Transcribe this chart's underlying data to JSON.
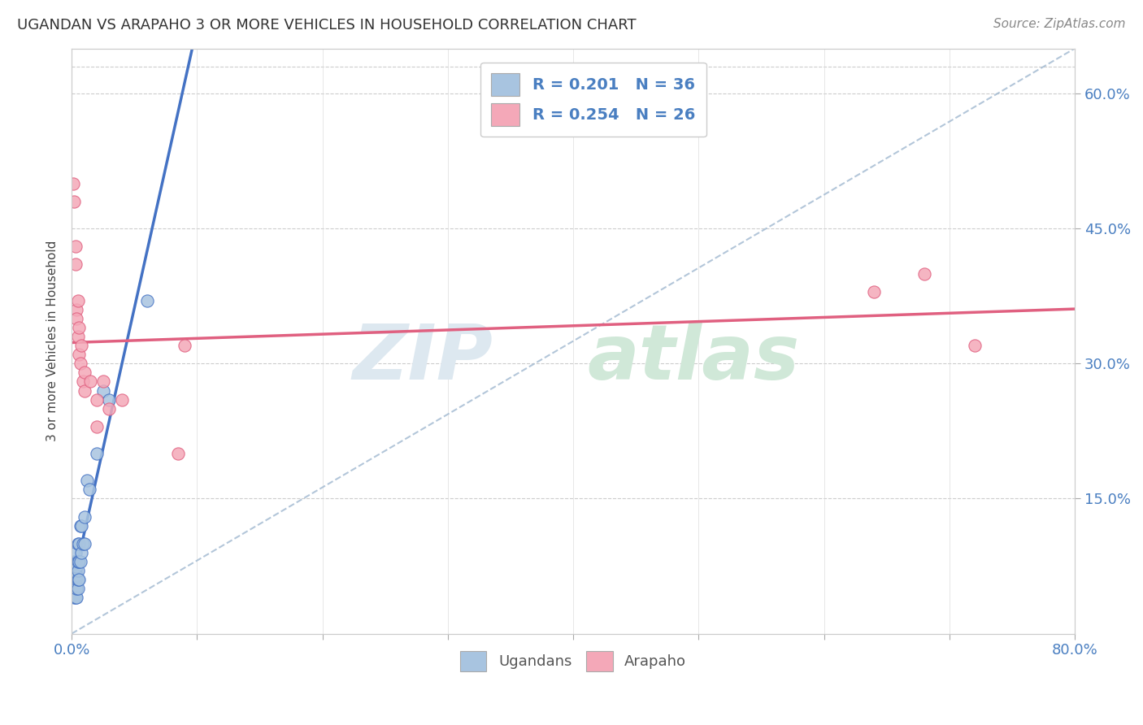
{
  "title": "UGANDAN VS ARAPAHO 3 OR MORE VEHICLES IN HOUSEHOLD CORRELATION CHART",
  "source": "Source: ZipAtlas.com",
  "ylabel": "3 or more Vehicles in Household",
  "xlabel": "",
  "xlim": [
    0.0,
    0.8
  ],
  "ylim": [
    0.0,
    0.65
  ],
  "ugandan_color": "#a8c4e0",
  "arapaho_color": "#f4a8b8",
  "ugandan_line_color": "#4472c4",
  "arapaho_line_color": "#e06080",
  "ref_line_color": "#a0b8d0",
  "background_color": "#ffffff",
  "ugandan_points_x": [
    0.002,
    0.002,
    0.002,
    0.002,
    0.002,
    0.003,
    0.003,
    0.003,
    0.003,
    0.003,
    0.003,
    0.004,
    0.004,
    0.004,
    0.004,
    0.005,
    0.005,
    0.005,
    0.005,
    0.005,
    0.006,
    0.006,
    0.006,
    0.007,
    0.007,
    0.008,
    0.008,
    0.009,
    0.01,
    0.01,
    0.012,
    0.014,
    0.02,
    0.025,
    0.03,
    0.06
  ],
  "ugandan_points_y": [
    0.04,
    0.05,
    0.06,
    0.07,
    0.08,
    0.04,
    0.05,
    0.06,
    0.07,
    0.08,
    0.09,
    0.04,
    0.05,
    0.065,
    0.075,
    0.05,
    0.06,
    0.07,
    0.08,
    0.1,
    0.06,
    0.08,
    0.1,
    0.08,
    0.12,
    0.09,
    0.12,
    0.1,
    0.1,
    0.13,
    0.17,
    0.16,
    0.2,
    0.27,
    0.26,
    0.37
  ],
  "arapaho_points_x": [
    0.001,
    0.002,
    0.003,
    0.003,
    0.004,
    0.004,
    0.005,
    0.005,
    0.006,
    0.006,
    0.007,
    0.008,
    0.009,
    0.01,
    0.01,
    0.015,
    0.02,
    0.02,
    0.025,
    0.03,
    0.04,
    0.085,
    0.09,
    0.64,
    0.68,
    0.72
  ],
  "arapaho_points_y": [
    0.5,
    0.48,
    0.43,
    0.41,
    0.36,
    0.35,
    0.37,
    0.33,
    0.34,
    0.31,
    0.3,
    0.32,
    0.28,
    0.29,
    0.27,
    0.28,
    0.23,
    0.26,
    0.28,
    0.25,
    0.26,
    0.2,
    0.32,
    0.38,
    0.4,
    0.32
  ],
  "legend_blue_label": "R = 0.201   N = 36",
  "legend_pink_label": "R = 0.254   N = 26",
  "bottom_legend_ugandan": "Ugandans",
  "bottom_legend_arapaho": "Arapaho"
}
